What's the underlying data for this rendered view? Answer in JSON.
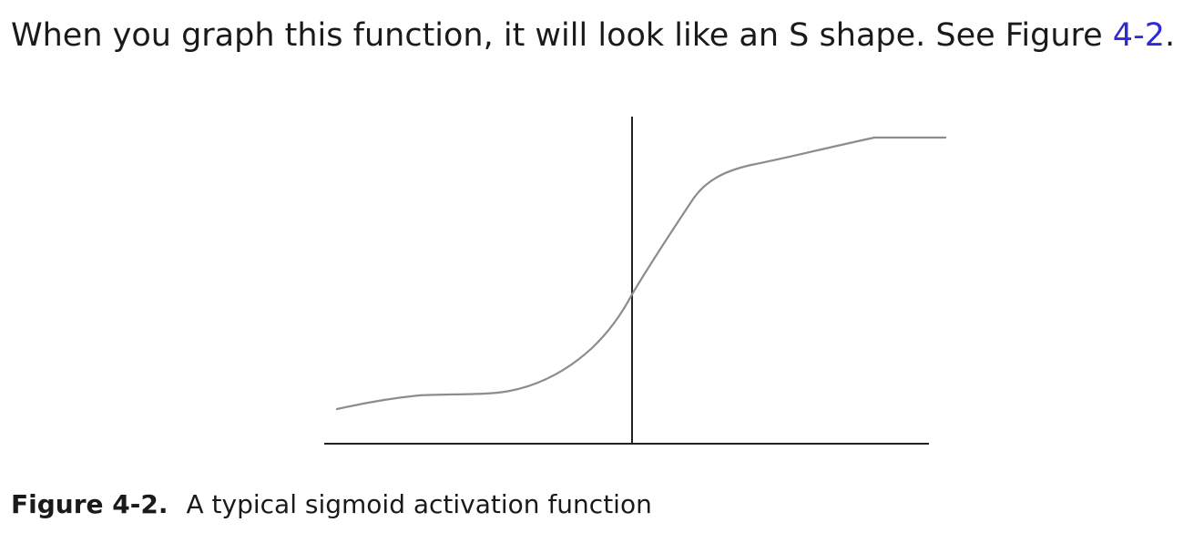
{
  "paragraph": {
    "text_before": "When you graph this function, it will look like an S shape. See Figure ",
    "link_text": "4-2",
    "text_after": ".",
    "link_color": "#2d2ad6"
  },
  "figure": {
    "caption_label": "Figure 4-2.",
    "caption_text": "A typical sigmoid activation function",
    "line_color": "#8c8c8c",
    "axis_color": "#222222",
    "curve_shape": "sigmoid"
  }
}
